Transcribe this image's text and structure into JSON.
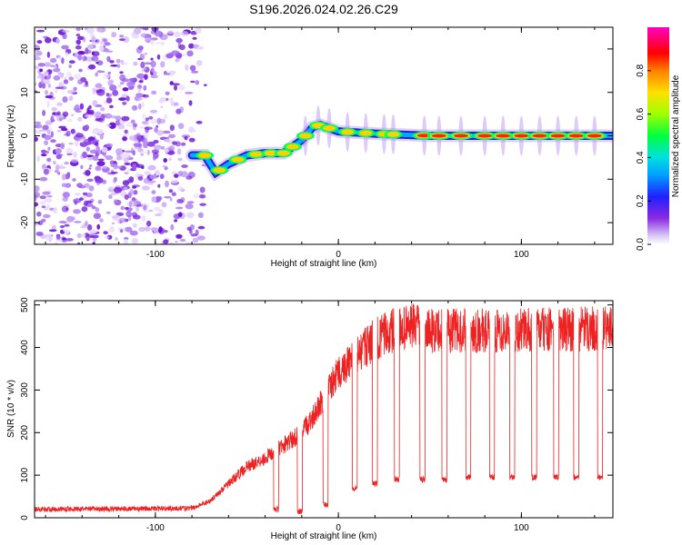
{
  "figure_title": "S196.2026.024.02.26.C29",
  "chart_data": [
    {
      "type": "heatmap",
      "xlabel": "Height of straight line (km)",
      "ylabel": "Frequency (Hz)",
      "xlim": [
        -166,
        150
      ],
      "ylim": [
        -25,
        25
      ],
      "xticks": [
        -100,
        0,
        100
      ],
      "yticks": [
        -20,
        -10,
        0,
        10,
        20
      ],
      "colorbar": {
        "label": "Normalized spectral amplitude",
        "range": [
          0,
          1
        ],
        "ticks": [
          "0.0",
          "0.2",
          "0.4",
          "0.6",
          "0.8"
        ]
      },
      "noise_region_x": [
        -166,
        -78
      ],
      "ridge": {
        "x": [
          -80,
          -73,
          -67,
          -60,
          -50,
          -40,
          -30,
          -20,
          -14,
          -10,
          0,
          20,
          50,
          100,
          150
        ],
        "frequency": [
          -4.5,
          -4.5,
          -8.5,
          -6.5,
          -4.5,
          -4,
          -4,
          -1,
          2,
          2.5,
          1,
          0.5,
          0,
          0,
          0
        ]
      },
      "bright_blobs_x": [
        -73,
        -65,
        -55,
        -45,
        -37,
        -30,
        -25,
        -18,
        -11,
        -5,
        5,
        15,
        25,
        30,
        47,
        55,
        67,
        80,
        90,
        100,
        110,
        120,
        130,
        140
      ]
    },
    {
      "type": "line",
      "xlabel": "Height of straight line (km)",
      "ylabel": "SNR (10 * v/v)",
      "xlim": [
        -166,
        150
      ],
      "ylim": [
        0,
        510
      ],
      "xticks": [
        -100,
        0,
        100
      ],
      "yticks": [
        0,
        100,
        200,
        300,
        400,
        500
      ],
      "trend": {
        "x": [
          -166,
          -80,
          -70,
          -60,
          -50,
          -40,
          -30,
          -20,
          -15,
          -10,
          0,
          10,
          20,
          30,
          40,
          50,
          100,
          150
        ],
        "snr": [
          20,
          22,
          40,
          80,
          120,
          140,
          170,
          200,
          230,
          270,
          340,
          380,
          420,
          440,
          450,
          440,
          440,
          445
        ]
      },
      "dropouts_x": [
        -34,
        -21,
        -7,
        9,
        20,
        32,
        46,
        58,
        71,
        84,
        95,
        107,
        119,
        130,
        143
      ],
      "dropouts_level": [
        20,
        15,
        30,
        70,
        80,
        90,
        90,
        90,
        95,
        95,
        95,
        95,
        95,
        95,
        95
      ],
      "color": "#ee2222"
    }
  ],
  "colors": {
    "noise": "#7b2be0",
    "ridge_outer": "#2a1bd8",
    "line": "#ee2222"
  }
}
